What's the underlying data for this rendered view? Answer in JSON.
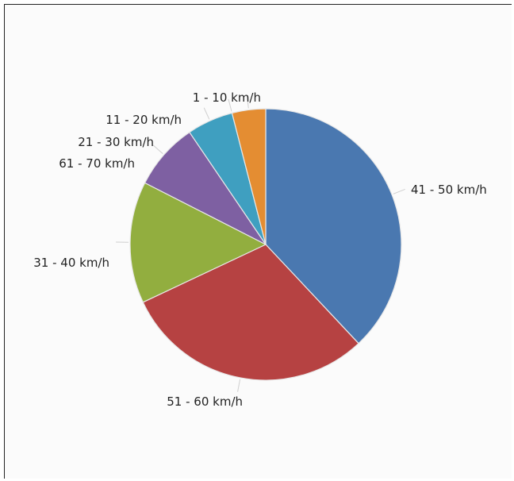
{
  "chart_data": {
    "type": "pie",
    "title": "",
    "slices": [
      {
        "label": "41 - 50 km/h",
        "value": 38.0,
        "color": "#4a78b0"
      },
      {
        "label": "51 - 60 km/h",
        "value": 30.0,
        "color": "#b64242"
      },
      {
        "label": "31 - 40 km/h",
        "value": 14.5,
        "color": "#92ae3f"
      },
      {
        "label": "61 - 70 km/h",
        "value": 8.0,
        "color": "#7e60a2"
      },
      {
        "label": "21 - 30 km/h",
        "value": 5.5,
        "color": "#3f9fc0"
      },
      {
        "label": "11 - 20 km/h",
        "value": 0,
        "color": "#3f9fc0"
      },
      {
        "label": "1 - 10 km/h",
        "value": 4.0,
        "color": "#e48d32"
      }
    ],
    "start_angle_deg": 90,
    "direction": "clockwise"
  }
}
